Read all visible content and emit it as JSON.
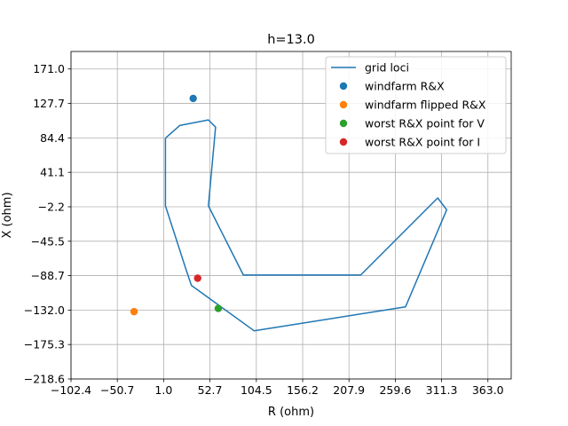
{
  "chart_data": {
    "type": "scatter",
    "title": "h=13.0",
    "xlabel": "R (ohm)",
    "ylabel": "X (ohm)",
    "xlim": [
      -102.4,
      389.0
    ],
    "ylim": [
      -218.6,
      193.0
    ],
    "xticks": [
      -102.4,
      -50.7,
      1.0,
      52.7,
      104.5,
      156.2,
      207.9,
      259.6,
      311.3,
      363.0
    ],
    "xtick_labels": [
      "−102.4",
      "−50.7",
      "1.0",
      "52.7",
      "104.5",
      "156.2",
      "207.9",
      "259.6",
      "311.3",
      "363.0"
    ],
    "yticks": [
      -218.6,
      -175.3,
      -132.0,
      -88.7,
      -45.5,
      -2.2,
      41.1,
      84.4,
      127.7,
      171.0
    ],
    "ytick_labels": [
      "−218.6",
      "−175.3",
      "−132.0",
      "−88.7",
      "−45.5",
      "−2.2",
      "41.1",
      "84.4",
      "127.7",
      "171.0"
    ],
    "grid": true,
    "legend_position": "top-right",
    "series": [
      {
        "name": "grid loci",
        "kind": "line",
        "color": "#1f77b4",
        "points": [
          [
            3.0,
            84.0
          ],
          [
            19.0,
            100.0
          ],
          [
            51.0,
            107.0
          ],
          [
            59.0,
            98.0
          ],
          [
            51.0,
            -1.0
          ],
          [
            90.0,
            -88.0
          ],
          [
            221.0,
            -88.0
          ],
          [
            307.0,
            9.0
          ],
          [
            317.0,
            -6.0
          ],
          [
            271.0,
            -128.0
          ],
          [
            102.0,
            -158.0
          ],
          [
            32.0,
            -101.0
          ],
          [
            26.0,
            -81.0
          ],
          [
            3.0,
            -1.0
          ],
          [
            3.0,
            84.0
          ]
        ]
      },
      {
        "name": "windfarm R&X",
        "kind": "scatter",
        "color": "#1f77b4",
        "points": [
          [
            34.0,
            134.0
          ]
        ]
      },
      {
        "name": "windfarm flipped R&X",
        "kind": "scatter",
        "color": "#ff7f0e",
        "points": [
          [
            -32.0,
            -134.0
          ]
        ]
      },
      {
        "name": "worst R&X point for V",
        "kind": "scatter",
        "color": "#2ca02c",
        "points": [
          [
            62.0,
            -130.0
          ]
        ]
      },
      {
        "name": "worst R&X point for I",
        "kind": "scatter",
        "color": "#d62728",
        "points": [
          [
            39.0,
            -92.0
          ]
        ]
      }
    ]
  }
}
